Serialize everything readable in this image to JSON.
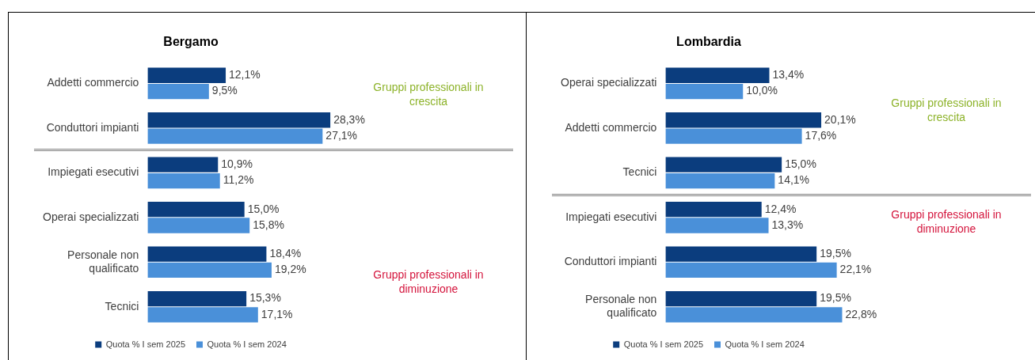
{
  "chart_data": [
    {
      "type": "bar",
      "orientation": "horizontal",
      "title": "Bergamo",
      "categories": [
        "Addetti commercio",
        "Conduttori impianti",
        "Impiegati esecutivi",
        "Operai specializzati",
        "Personale non qualificato",
        "Tecnici"
      ],
      "series": [
        {
          "name": "Quota % I sem 2025",
          "color": "#0b3d7e",
          "values": [
            12.1,
            28.3,
            10.9,
            15.0,
            18.4,
            15.3
          ],
          "value_labels": [
            "12,1%",
            "28,3%",
            "10,9%",
            "15,0%",
            "18,4%",
            "15,3%"
          ]
        },
        {
          "name": "Quota % I sem 2024",
          "color": "#4a90d9",
          "values": [
            9.5,
            27.1,
            11.2,
            15.8,
            19.2,
            17.1
          ],
          "value_labels": [
            "9,5%",
            "27,1%",
            "11,2%",
            "15,8%",
            "19,2%",
            "17,1%"
          ]
        }
      ],
      "tick_labels": "y",
      "legend": "bottom",
      "annotations": [
        "Gruppi professionali in crescita",
        "Gruppi professionali in diminuzione"
      ]
    },
    {
      "type": "bar",
      "orientation": "horizontal",
      "title": "Lombardia",
      "categories": [
        "Operai specializzati",
        "Addetti commercio",
        "Tecnici",
        "Impiegati esecutivi",
        "Conduttori impianti",
        "Personale non qualificato"
      ],
      "series": [
        {
          "name": "Quota % I sem 2025",
          "color": "#0b3d7e",
          "values": [
            13.4,
            20.1,
            15.0,
            12.4,
            19.5,
            19.5
          ],
          "value_labels": [
            "13,4%",
            "20,1%",
            "15,0%",
            "12,4%",
            "19,5%",
            "19,5%"
          ]
        },
        {
          "name": "Quota % I sem 2024",
          "color": "#4a90d9",
          "values": [
            10.0,
            17.6,
            14.1,
            13.3,
            22.1,
            22.8
          ],
          "value_labels": [
            "10,0%",
            "17,6%",
            "14,1%",
            "13,3%",
            "22,1%",
            "22,8%"
          ]
        }
      ],
      "tick_labels": "y",
      "legend": "bottom",
      "annotations": [
        "Gruppi professionali in crescita",
        "Gruppi professionali in diminuzione"
      ]
    }
  ]
}
